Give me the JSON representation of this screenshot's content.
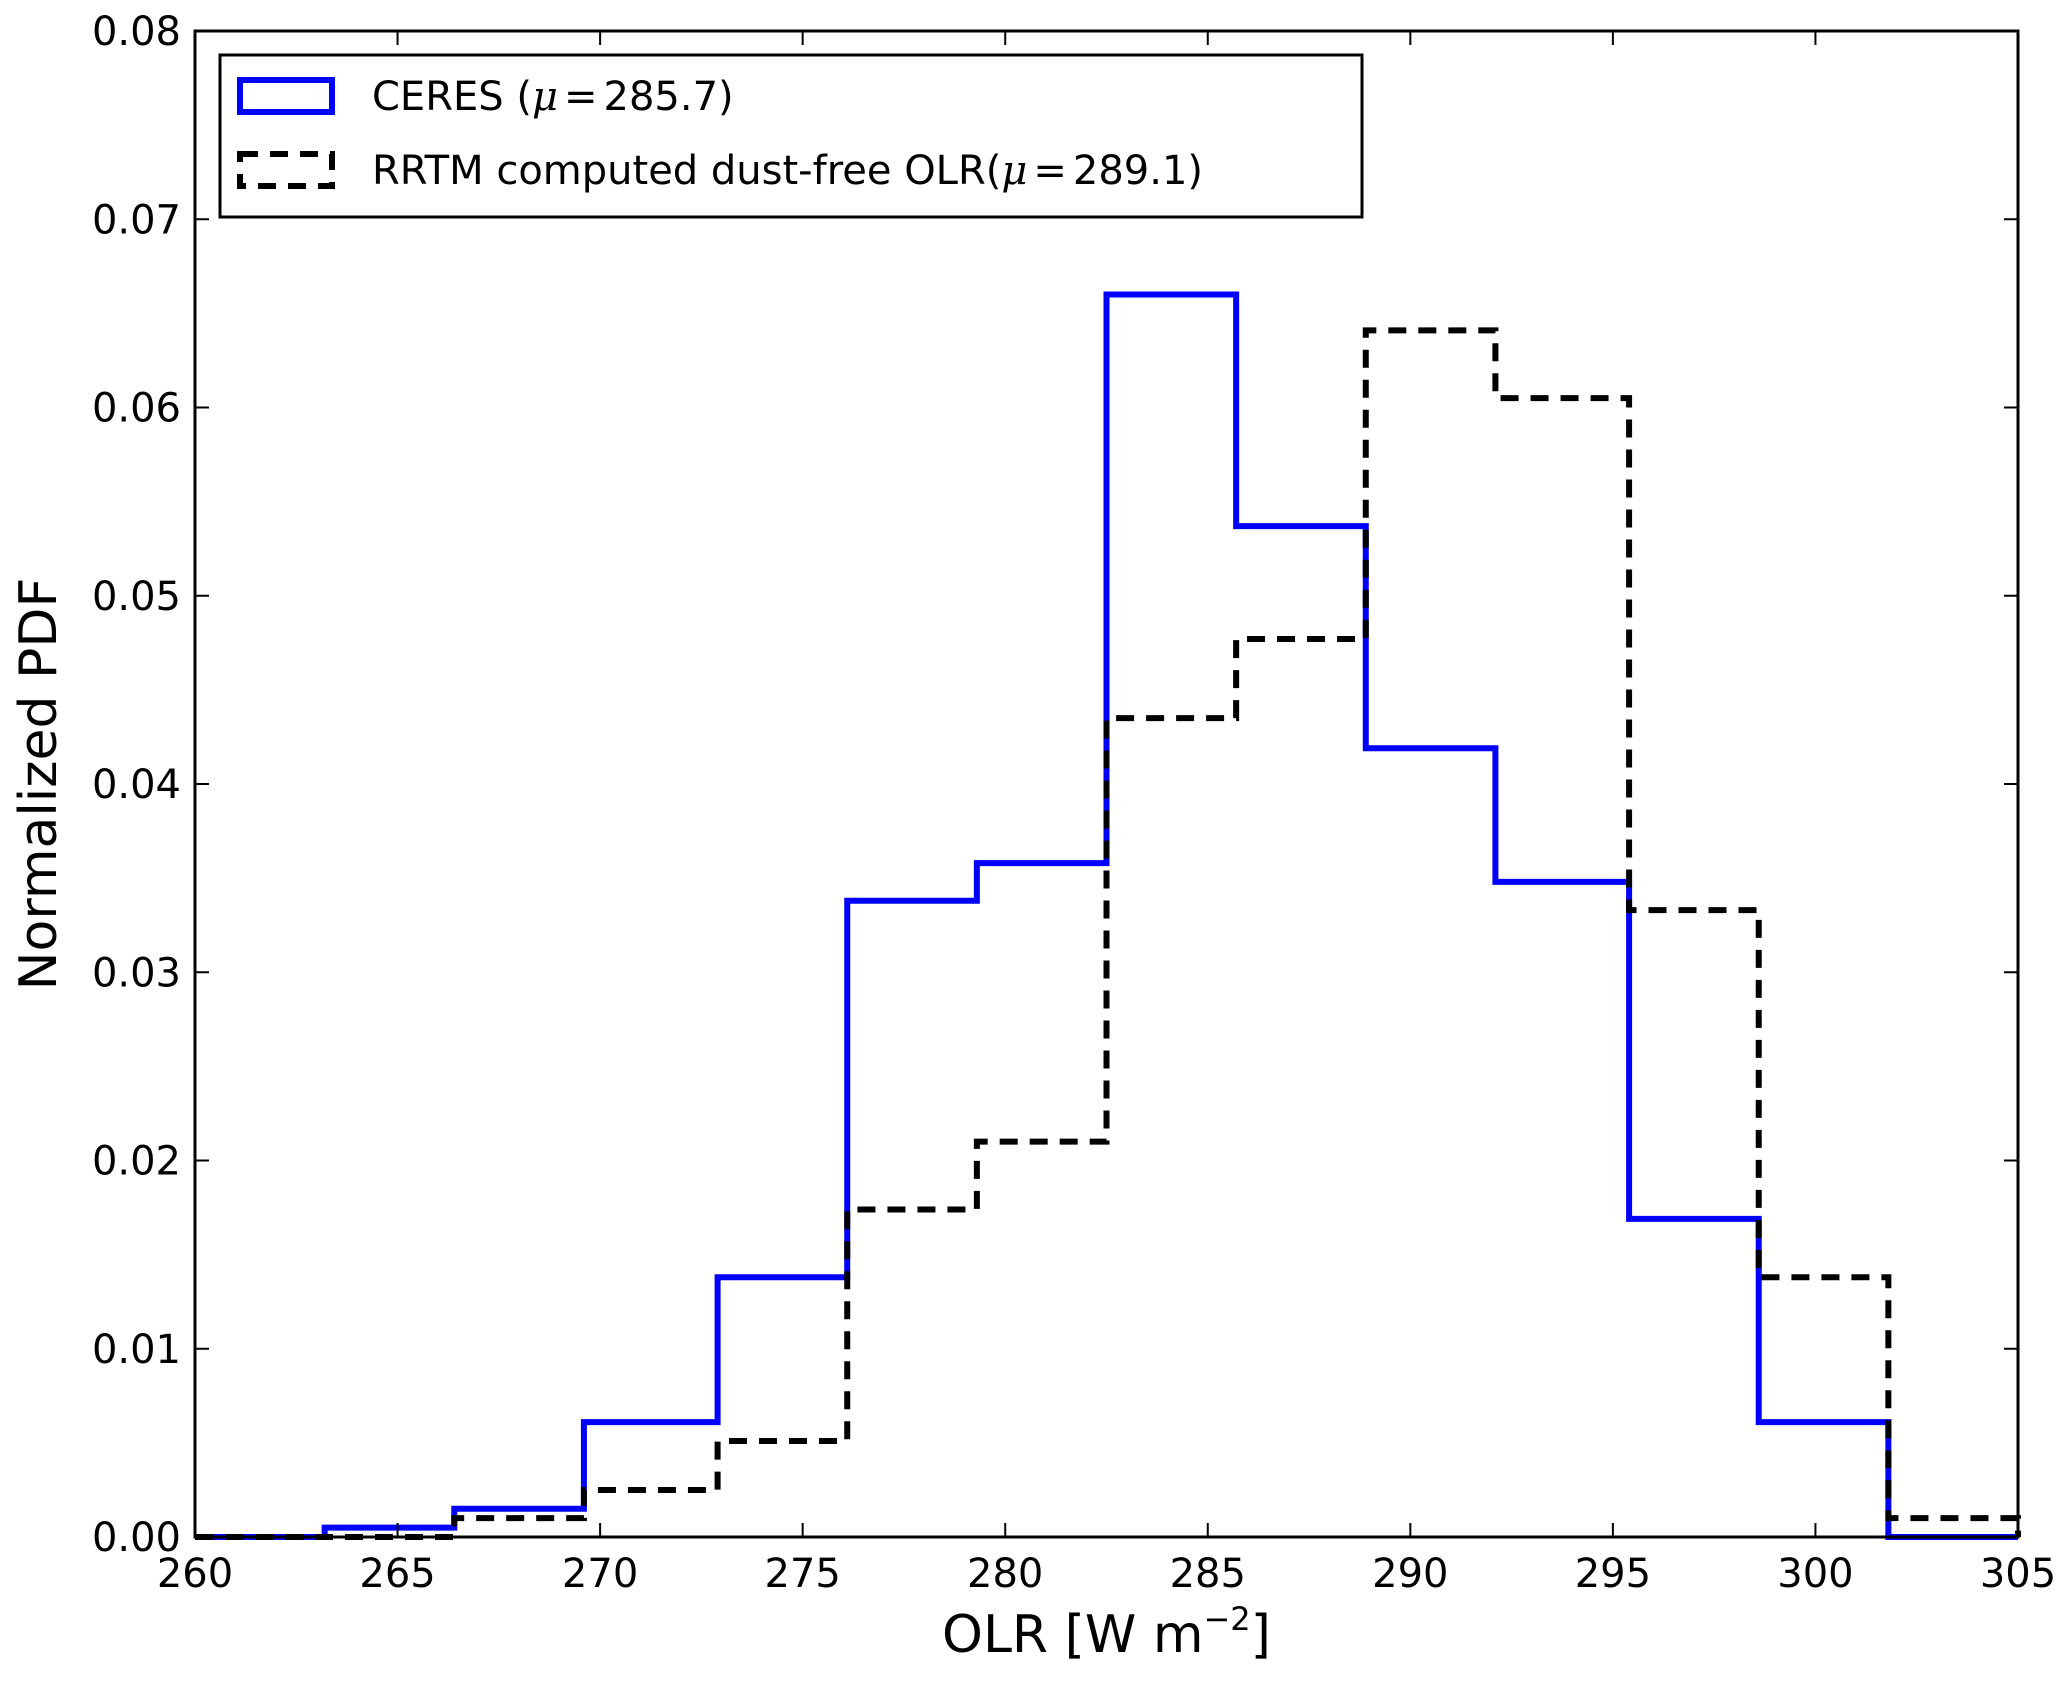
{
  "chart_data": {
    "type": "histogram-step",
    "xlabel": "OLR [W m",
    "xlabel_superscript": "−2",
    "xlabel_suffix": "]",
    "ylabel": "Normalized PDF",
    "xlim": [
      260,
      305
    ],
    "ylim": [
      0,
      0.08
    ],
    "xticks": [
      "260",
      "265",
      "270",
      "275",
      "280",
      "285",
      "290",
      "295",
      "300",
      "305"
    ],
    "yticks": [
      "0.00",
      "0.01",
      "0.02",
      "0.03",
      "0.04",
      "0.05",
      "0.06",
      "0.07",
      "0.08"
    ],
    "grid": false,
    "legend_position": "upper-left",
    "series": [
      {
        "name": "CERES (μ=285.7)",
        "legend_prefix": "CERES (",
        "legend_mu": "μ",
        "legend_eq": "=",
        "legend_suffix": "285.7)",
        "color": "#0000ff",
        "style": "solid",
        "bin_edges": [
          260.0,
          263.2,
          266.4,
          269.6,
          272.9,
          276.1,
          279.3,
          282.5,
          285.7,
          288.9,
          292.1,
          295.4,
          298.6,
          301.8,
          305.0
        ],
        "values": [
          0.0,
          0.0005,
          0.0015,
          0.0061,
          0.0138,
          0.0338,
          0.0358,
          0.066,
          0.0537,
          0.0419,
          0.0348,
          0.0169,
          0.0061,
          0.0
        ]
      },
      {
        "name": "RRTM computed dust-free OLR(μ=289.1)",
        "legend_prefix": "RRTM computed dust-free OLR(",
        "legend_mu": "μ",
        "legend_eq": "=",
        "legend_suffix": "289.1)",
        "color": "#000000",
        "style": "dashed",
        "bin_edges": [
          260.0,
          263.2,
          266.4,
          269.6,
          272.9,
          276.1,
          279.3,
          282.5,
          285.7,
          288.9,
          292.1,
          295.4,
          298.6,
          301.8,
          305.0
        ],
        "values": [
          0.0,
          0.0,
          0.001,
          0.0025,
          0.0051,
          0.0174,
          0.021,
          0.0435,
          0.0477,
          0.0641,
          0.0605,
          0.0333,
          0.0138,
          0.001
        ]
      }
    ]
  }
}
